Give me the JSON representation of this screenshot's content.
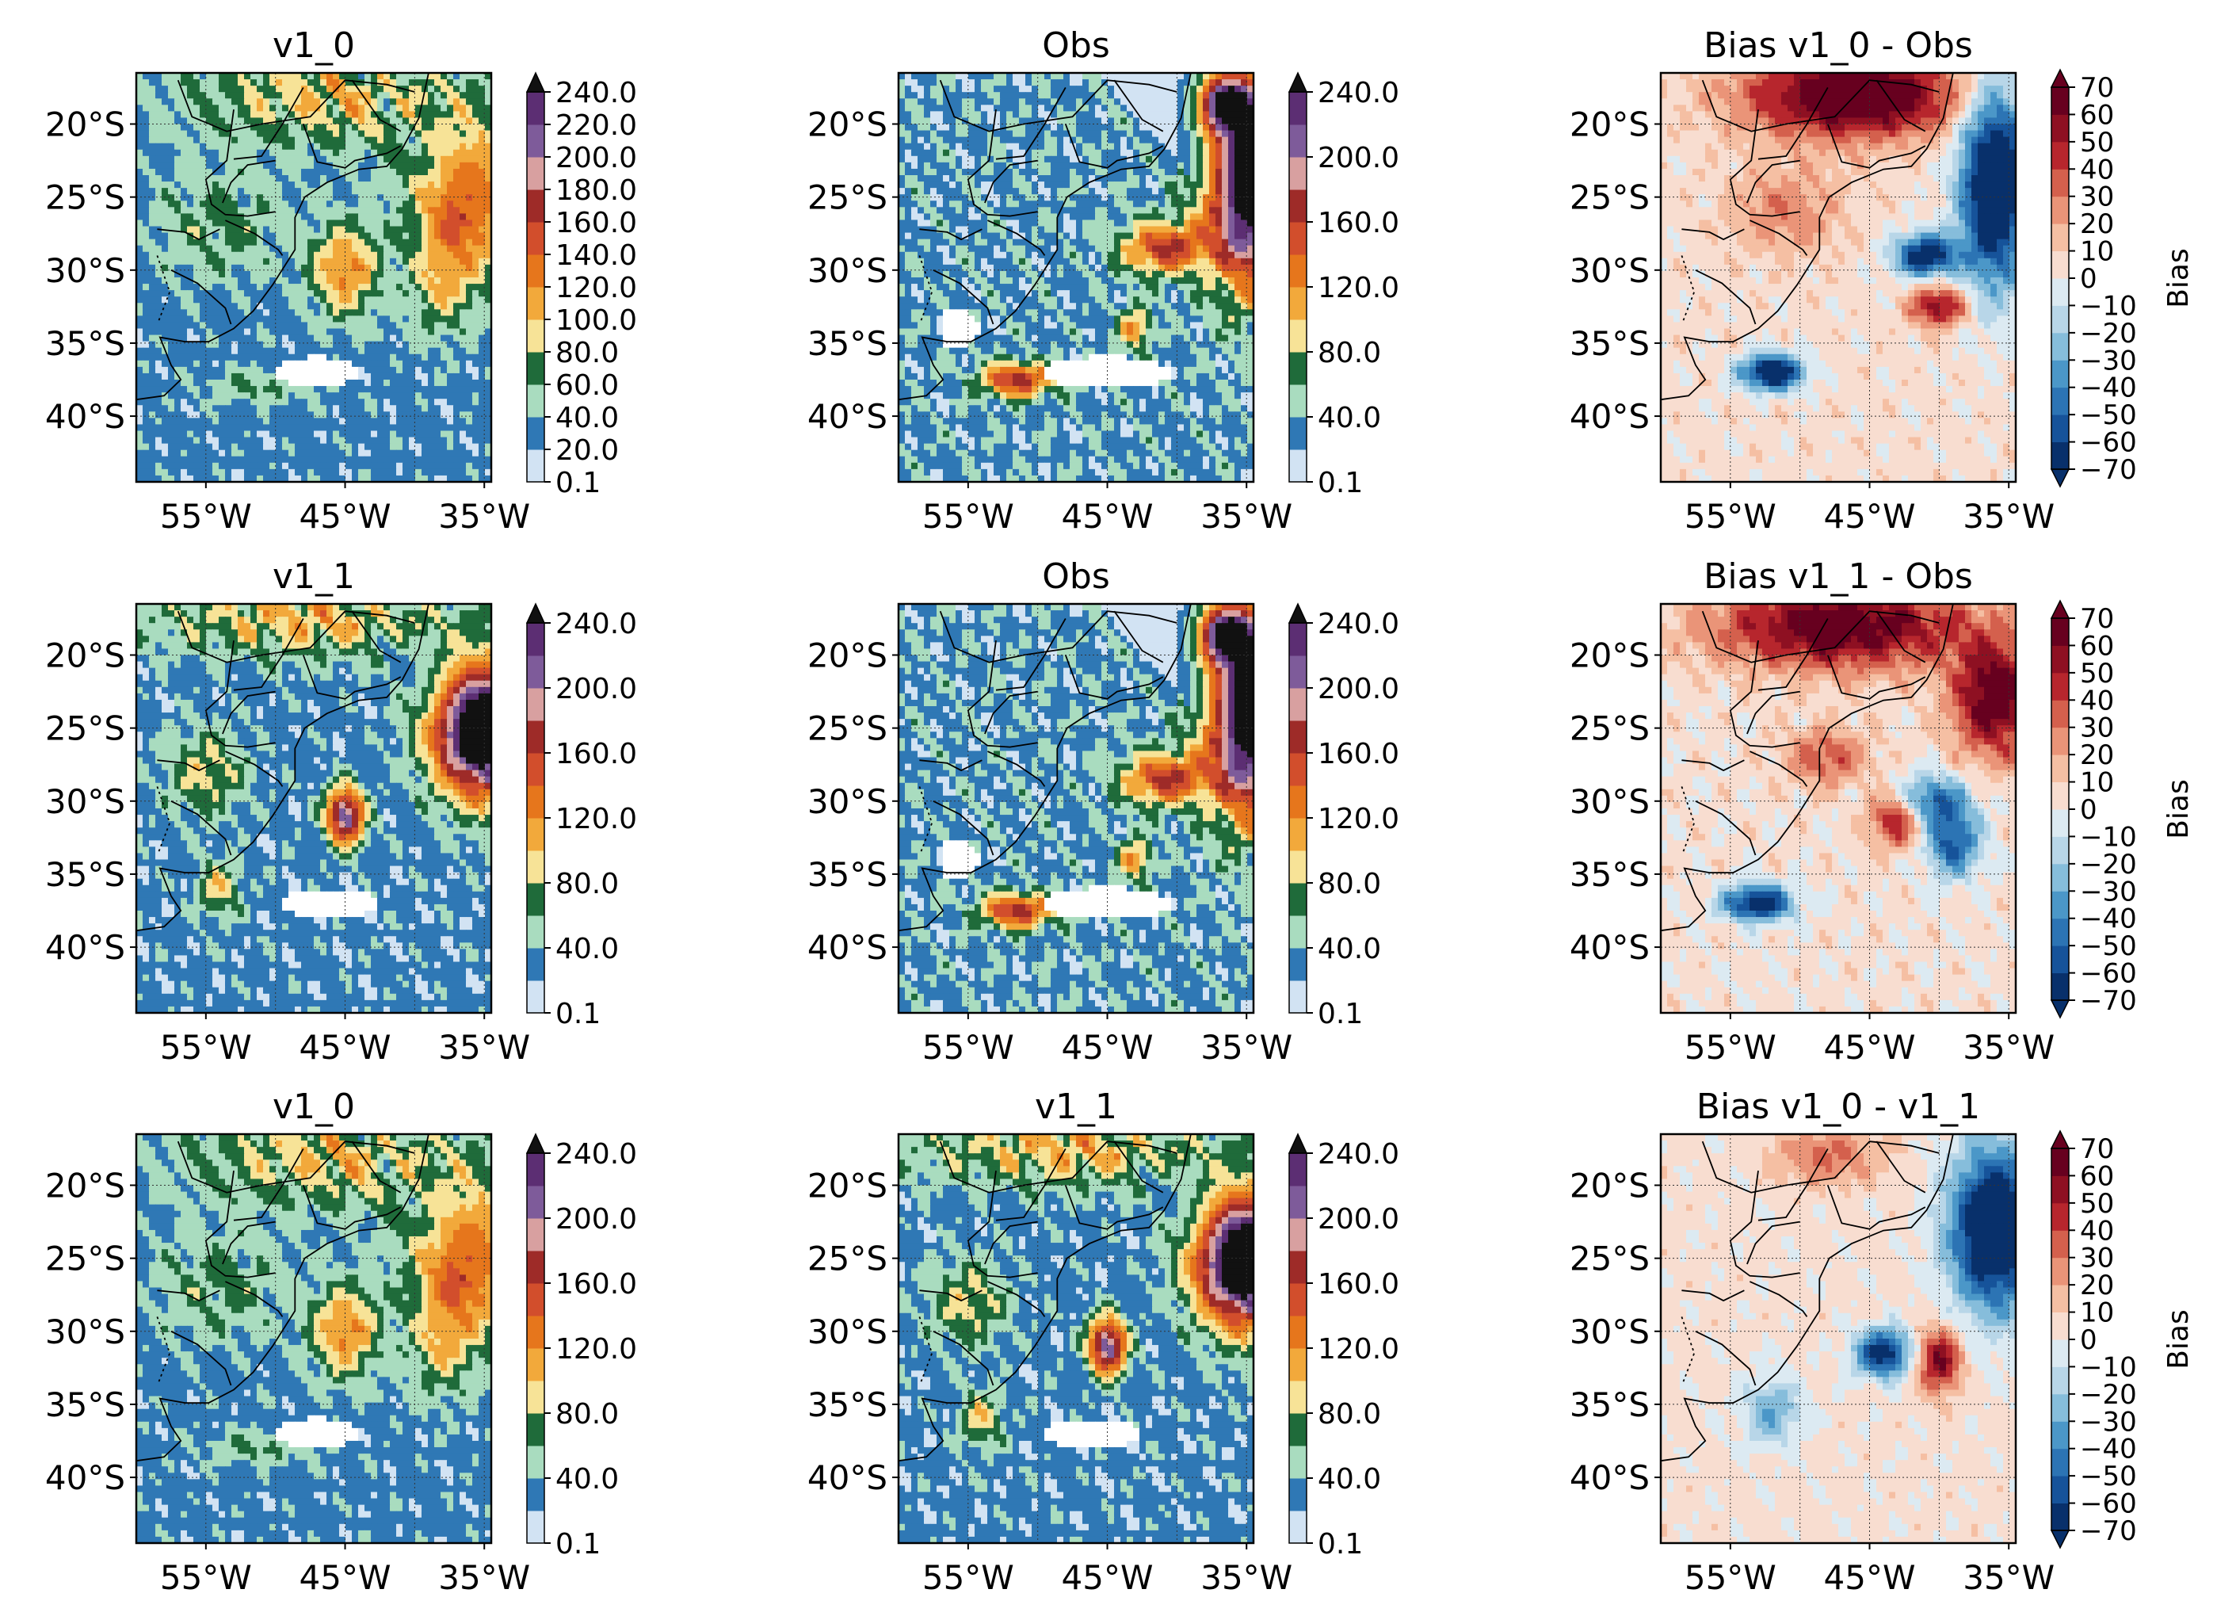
{
  "figure": {
    "panels": [
      {
        "id": "r0c0",
        "title": "v1_0",
        "kind": "precip",
        "field": "v10"
      },
      {
        "id": "r0c1",
        "title": "Obs",
        "kind": "precip",
        "field": "obs"
      },
      {
        "id": "r0c2",
        "title": "Bias v1_0 - Obs",
        "kind": "bias",
        "field": "b10obs"
      },
      {
        "id": "r1c0",
        "title": "v1_1",
        "kind": "precip",
        "field": "v11"
      },
      {
        "id": "r1c1",
        "title": "Obs",
        "kind": "precip",
        "field": "obs"
      },
      {
        "id": "r1c2",
        "title": "Bias v1_1 - Obs",
        "kind": "bias",
        "field": "b11obs"
      },
      {
        "id": "r2c0",
        "title": "v1_0",
        "kind": "precip",
        "field": "v10"
      },
      {
        "id": "r2c1",
        "title": "v1_1",
        "kind": "precip",
        "field": "v11"
      },
      {
        "id": "r2c2",
        "title": "Bias v1_0 - v1_1",
        "kind": "bias",
        "field": "b1011"
      }
    ],
    "map_axes": {
      "lon_range": [
        -60,
        -34.5
      ],
      "lat_range": [
        -44.5,
        -16.5
      ],
      "lon_ticks": [
        {
          "value": -55,
          "label": "55°W"
        },
        {
          "value": -45,
          "label": "45°W"
        },
        {
          "value": -35,
          "label": "35°W"
        }
      ],
      "lat_ticks": [
        {
          "value": -20,
          "label": "20°S"
        },
        {
          "value": -25,
          "label": "25°S"
        },
        {
          "value": -30,
          "label": "30°S"
        },
        {
          "value": -35,
          "label": "35°S"
        },
        {
          "value": -40,
          "label": "40°S"
        }
      ],
      "gridlines": true,
      "gridline_style": "dotted"
    },
    "precip_colorbar": {
      "levels": [
        0.1,
        20,
        40,
        60,
        80,
        100,
        120,
        140,
        160,
        180,
        200,
        220,
        240
      ],
      "colors": [
        "#d2e3f3",
        "#2f78b5",
        "#a9dcbf",
        "#1f6b3a",
        "#f7e397",
        "#f2a93b",
        "#e6761c",
        "#d24e2c",
        "#9e2b28",
        "#d8a0a0",
        "#7e5b9a",
        "#5c2e73",
        "#111111"
      ],
      "extend": "max",
      "top_row_labels": [
        "0.1",
        "20.0",
        "40.0",
        "60.0",
        "80.0",
        "100.0",
        "120.0",
        "140.0",
        "160.0",
        "180.0",
        "200.0",
        "220.0",
        "240.0"
      ],
      "other_labels": [
        "0.1",
        "40.0",
        "80.0",
        "120.0",
        "160.0",
        "200.0",
        "240.0"
      ]
    },
    "bias_colorbar": {
      "levels": [
        -70,
        -60,
        -50,
        -40,
        -30,
        -20,
        -10,
        0,
        10,
        20,
        30,
        40,
        50,
        60,
        70
      ],
      "colors": [
        "#08306b",
        "#16539a",
        "#2c74b4",
        "#4b97c8",
        "#86bddb",
        "#b8d6e8",
        "#dceaf2",
        "#f8ddd0",
        "#f5bfa3",
        "#ea9478",
        "#d4604d",
        "#b7262d",
        "#8e1022",
        "#67001f"
      ],
      "extend": "both",
      "labels": [
        "−70",
        "−60",
        "−50",
        "−40",
        "−30",
        "−20",
        "−10",
        "0",
        "10",
        "20",
        "30",
        "40",
        "50",
        "60",
        "70"
      ],
      "label": "Bias"
    }
  }
}
